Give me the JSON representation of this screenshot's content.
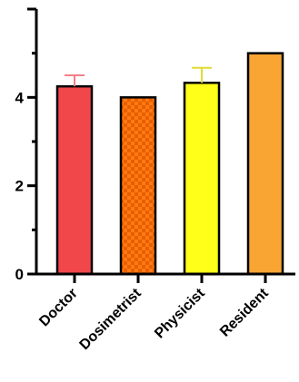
{
  "chart_data": {
    "type": "bar",
    "categories": [
      "Doctor",
      "Dosimetrist",
      "Physicist",
      "Resident"
    ],
    "values": [
      4.25,
      4.0,
      4.33,
      5.0
    ],
    "error_upper": [
      4.5,
      null,
      4.67,
      null
    ],
    "bar_colors": [
      "#f2474a",
      "#ff7a12",
      "#ffff1a",
      "#f8a533"
    ],
    "error_colors": [
      "#f47f87",
      null,
      "#e0dc33",
      null
    ],
    "patterned": [
      false,
      true,
      false,
      false
    ],
    "ylim": [
      0,
      6
    ],
    "yticks": [
      "0",
      "2",
      "4"
    ],
    "grid": false,
    "title": "",
    "xlabel": "",
    "ylabel": ""
  }
}
